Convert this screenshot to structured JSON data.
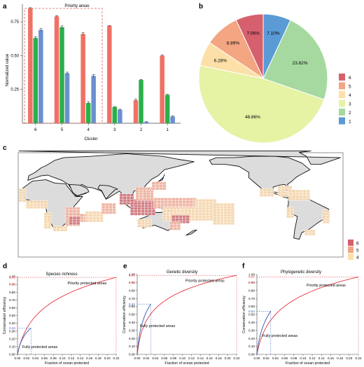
{
  "panel_labels": {
    "a": "a",
    "b": "b",
    "c": "c",
    "d": "d",
    "e": "e",
    "f": "f"
  },
  "colors": {
    "c6": "#d6606d",
    "c5": "#f4a582",
    "c4": "#fde0a8",
    "c3": "#e6f2a4",
    "c2": "#a6d9a0",
    "c1": "#5a9bd5",
    "bar_red": "#f07164",
    "bar_green": "#2ab04a",
    "bar_blue": "#6b8fcf",
    "curve_red": "#e6474f",
    "curve_blue": "#3f63b8",
    "land": "#dcdcdc",
    "cell_light": "#f5d7b0",
    "cell_mid": "#efb3a1",
    "cell_dark": "#d17a7f"
  },
  "chart_data": [
    {
      "id": "a",
      "type": "bar",
      "title": "Priority areas",
      "xlabel": "Cluster",
      "ylabel": "Normalized value",
      "categories": [
        "6",
        "5",
        "4",
        "3",
        "2",
        "1"
      ],
      "series": [
        {
          "color": "#f07164",
          "values": [
            0.85,
            0.79,
            0.66,
            0.72,
            0.17,
            0.5
          ],
          "err": [
            0.005,
            0.005,
            0.01,
            0.003,
            0.01,
            0.004
          ]
        },
        {
          "color": "#2ab04a",
          "values": [
            0.63,
            0.71,
            0.15,
            0.12,
            0.32,
            0.21
          ],
          "err": [
            0.01,
            0.01,
            0.01,
            0.004,
            0.005,
            0.004
          ]
        },
        {
          "color": "#6b8fcf",
          "values": [
            0.69,
            0.37,
            0.35,
            0.1,
            0.01,
            0.05
          ],
          "err": [
            0.01,
            0.008,
            0.01,
            0.004,
            0.002,
            0.004
          ]
        }
      ],
      "ylim": [
        0,
        0.88
      ],
      "yticks": [
        "0.25",
        "0.50",
        "0.75"
      ],
      "ytick_values": [
        0.25,
        0.5,
        0.75
      ],
      "highlight_categories": [
        "6",
        "5",
        "4"
      ]
    },
    {
      "id": "b",
      "type": "pie",
      "slices": [
        {
          "label": "6",
          "value": 7.06,
          "text": "7.06%",
          "color": "#d6606d"
        },
        {
          "label": "5",
          "value": 8.89,
          "text": "8.89%",
          "color": "#f4a582"
        },
        {
          "label": "4",
          "value": 6.28,
          "text": "6.28%",
          "color": "#fde0a8"
        },
        {
          "label": "3",
          "value": 48.86,
          "text": "48.86%",
          "color": "#e6f2a4"
        },
        {
          "label": "2",
          "value": 23.82,
          "text": "23.82%",
          "color": "#a6d9a0"
        },
        {
          "label": "1",
          "value": 7.1,
          "text": "7.10%",
          "color": "#5a9bd5"
        }
      ],
      "legend": [
        "6",
        "5",
        "4",
        "3",
        "2",
        "1"
      ],
      "legend_position": "right"
    },
    {
      "id": "c",
      "type": "map",
      "legend": [
        {
          "label": "6",
          "color": "#d6606d"
        },
        {
          "label": "5",
          "color": "#f4a582"
        },
        {
          "label": "4",
          "color": "#fde0a8"
        }
      ]
    },
    {
      "id": "d",
      "type": "line",
      "title": "Species richness",
      "xlabel": "Fraction of ocean protected",
      "ylabel": "Conservation efficiency",
      "xlim": [
        0,
        0.22
      ],
      "ylim": [
        0,
        1.0
      ],
      "xticks": [
        "0.00",
        "0.02",
        "0.04",
        "0.06",
        "0.08",
        "0.10",
        "0.12",
        "0.14",
        "0.16",
        "0.18",
        "0.20",
        "0.22"
      ],
      "yticks": [
        "0.00",
        "0.10",
        "0.20",
        "0.30",
        "0.40",
        "0.50",
        "0.60",
        "0.70",
        "0.80",
        "0.90",
        "1.00"
      ],
      "highlight_yticks": [
        {
          "text": "0.34",
          "value": 0.34,
          "color": "#3f63b8"
        },
        {
          "text": "0.90",
          "value": 0.9,
          "color": "#e6474f"
        },
        {
          "text": "0.99",
          "value": 0.99,
          "color": "#e6474f"
        }
      ],
      "series": [
        {
          "name": "Priority protected areas",
          "x_end": 0.22,
          "y_end": 0.99,
          "curvature": 0.012,
          "color": "#e6474f"
        },
        {
          "name": "Fully protected areas",
          "x_end": 0.03,
          "y_end": 0.34,
          "curvature": 0.006,
          "color": "#3f63b8"
        }
      ],
      "annotations": [
        {
          "text": "Priority protected areas",
          "x": 0.155,
          "y": 0.9
        },
        {
          "text": "Fully protected areas",
          "x": 0.05,
          "y": 0.08
        }
      ]
    },
    {
      "id": "e",
      "type": "line",
      "title": "Genetic diversity",
      "xlabel": "Fraction of ocean protected",
      "ylabel": "Conservation efficiency",
      "xlim": [
        0,
        0.22
      ],
      "ylim": [
        0,
        1.0
      ],
      "xticks": [
        "0.00",
        "0.02",
        "0.04",
        "0.06",
        "0.08",
        "0.10",
        "0.12",
        "0.14",
        "0.16",
        "0.18",
        "0.20",
        "0.22"
      ],
      "yticks": [
        "0.00",
        "0.10",
        "0.20",
        "0.30",
        "0.40",
        "0.50",
        "0.60",
        "0.70",
        "0.80",
        "0.90",
        "1.00"
      ],
      "highlight_yticks": [
        {
          "text": "0.63",
          "value": 0.63,
          "color": "#3f63b8"
        },
        {
          "text": "0.90",
          "value": 0.9,
          "color": "#e6474f"
        },
        {
          "text": "0.99",
          "value": 0.99,
          "color": "#e6474f"
        }
      ],
      "series": [
        {
          "name": "Priority protected areas",
          "x_end": 0.22,
          "y_end": 0.99,
          "curvature": 0.005,
          "color": "#e6474f"
        },
        {
          "name": "Fully protected areas",
          "x_end": 0.03,
          "y_end": 0.63,
          "curvature": 0.004,
          "color": "#3f63b8"
        }
      ],
      "annotations": [
        {
          "text": "Priority protected areas",
          "x": 0.15,
          "y": 0.91
        },
        {
          "text": "Fully protected areas",
          "x": 0.045,
          "y": 0.34
        }
      ]
    },
    {
      "id": "f",
      "type": "line",
      "title": "Phylogenetic diversity",
      "xlabel": "Fraction of ocean protected",
      "ylabel": "Conservation efficiency",
      "xlim": [
        0,
        0.22
      ],
      "ylim": [
        0,
        1.0
      ],
      "xticks": [
        "0.00",
        "0.02",
        "0.04",
        "0.06",
        "0.08",
        "0.10",
        "0.12",
        "0.14",
        "0.16",
        "0.18",
        "0.20",
        "0.22"
      ],
      "yticks": [
        "0.00",
        "0.10",
        "0.20",
        "0.30",
        "0.40",
        "0.50",
        "0.60",
        "0.70",
        "0.80",
        "0.90",
        "1.00"
      ],
      "highlight_yticks": [
        {
          "text": "0.54",
          "value": 0.54,
          "color": "#3f63b8"
        },
        {
          "text": "0.90",
          "value": 0.9,
          "color": "#e6474f"
        },
        {
          "text": "0.97",
          "value": 0.97,
          "color": "#e6474f"
        }
      ],
      "series": [
        {
          "name": "Priority protected areas",
          "x_end": 0.22,
          "y_end": 0.97,
          "curvature": 0.01,
          "color": "#e6474f"
        },
        {
          "name": "Fully protected areas",
          "x_end": 0.03,
          "y_end": 0.54,
          "curvature": 0.006,
          "color": "#3f63b8"
        }
      ],
      "annotations": [
        {
          "text": "Priority protected areas",
          "x": 0.15,
          "y": 0.85
        },
        {
          "text": "Fully protected areas",
          "x": 0.05,
          "y": 0.22
        }
      ]
    }
  ]
}
